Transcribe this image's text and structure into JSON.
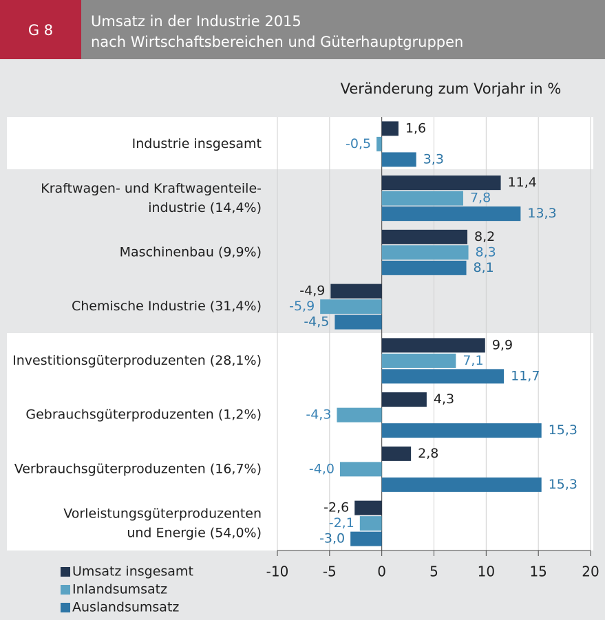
{
  "chart_data": {
    "type": "hbar",
    "figure_label": "G 8",
    "title": [
      "Umsatz in der Industrie 2015",
      "nach Wirtschaftsbereichen und Güterhauptgruppen"
    ],
    "subtitle": "Veränderung zum Vorjahr in %",
    "categories": [
      "Industrie insgesamt",
      "Kraftwagen- und Kraftwagenteile-\nindustrie (14,4%)",
      "Maschinenbau (9,9%)",
      "Chemische Industrie (31,4%)",
      "Investitionsgüterproduzenten (28,1%)",
      "Gebrauchsgüterproduzenten (1,2%)",
      "Verbrauchsgüterproduzenten (16,7%)",
      "Vorleistungsgüterproduzenten\nund Energie (54,0%)"
    ],
    "series": [
      {
        "name": "Umsatz insgesamt",
        "color": "#233650",
        "label_color": "#1e1e1e",
        "values": [
          1.6,
          11.4,
          8.2,
          -4.9,
          9.9,
          4.3,
          2.8,
          -2.6
        ],
        "value_labels": [
          "1,6",
          "11,4",
          "8,2",
          "-4,9",
          "9,9",
          "4,3",
          "2,8",
          "-2,6"
        ]
      },
      {
        "name": "Inlandsumsatz",
        "color": "#5ba3c3",
        "label_color": "#3a83b5",
        "values": [
          -0.5,
          7.8,
          8.3,
          -5.9,
          7.1,
          -4.3,
          -4.0,
          -2.1
        ],
        "value_labels": [
          "-0,5",
          "7,8",
          "8,3",
          "-5,9",
          "7,1",
          "-4,3",
          "-4,0",
          "-2,1"
        ]
      },
      {
        "name": "Auslandsumsatz",
        "color": "#2e76a6",
        "label_color": "#2e76a6",
        "values": [
          3.3,
          13.3,
          8.1,
          -4.5,
          11.7,
          15.3,
          15.3,
          -3.0
        ],
        "value_labels": [
          "3,3",
          "13,3",
          "8,1",
          "-4,5",
          "11,7",
          "15,3",
          "15,3",
          "-3,0"
        ]
      }
    ],
    "xlim": [
      -10,
      20
    ],
    "xticks": [
      -10,
      -5,
      0,
      5,
      10,
      15,
      20
    ],
    "grid": true
  }
}
